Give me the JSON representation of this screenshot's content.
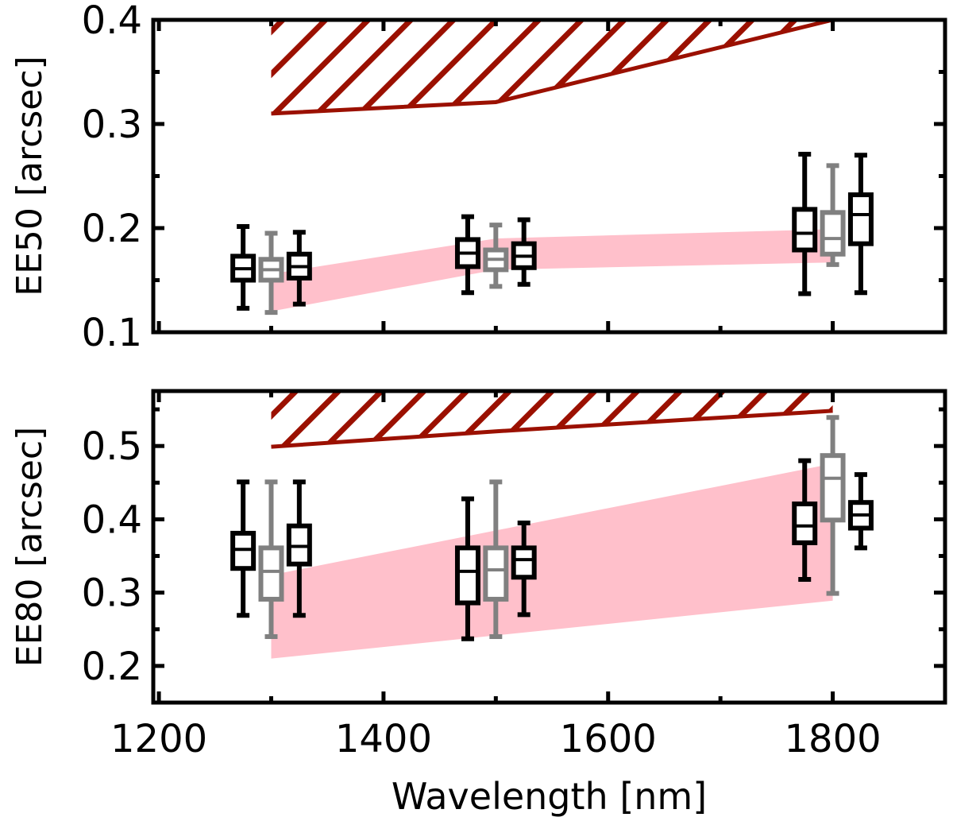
{
  "chart_data": [
    {
      "type": "box",
      "ylabel": "EE50 [arcsec]",
      "xlabel": "",
      "xlim": [
        1195,
        1900
      ],
      "ylim": [
        0.1,
        0.4
      ],
      "xticks": [
        1200,
        1400,
        1600,
        1800
      ],
      "yticks": [
        0.1,
        0.2,
        0.3,
        0.4
      ],
      "yticklabels": [
        "0.1",
        "0.2",
        "0.3",
        "0.4"
      ],
      "colors": {
        "black": "#000000",
        "gray": "#808080",
        "hatch": "#9b1000",
        "band": "#ffc0cb"
      },
      "hatched_region": {
        "x": [
          1300,
          1500,
          1800
        ],
        "lower": [
          0.31,
          0.321,
          0.4
        ]
      },
      "shaded_band": {
        "x": [
          1300,
          1500,
          1800
        ],
        "lower": [
          0.12,
          0.16,
          0.167
        ],
        "upper": [
          0.156,
          0.19,
          0.199
        ]
      },
      "boxes": [
        {
          "x": 1275,
          "color": "black",
          "min": 0.123,
          "q1": 0.15,
          "median": 0.161,
          "q3": 0.173,
          "max": 0.2015
        },
        {
          "x": 1300,
          "color": "gray",
          "min": 0.119,
          "q1": 0.15,
          "median": 0.16,
          "q3": 0.17,
          "max": 0.195
        },
        {
          "x": 1325,
          "color": "black",
          "min": 0.127,
          "q1": 0.152,
          "median": 0.163,
          "q3": 0.175,
          "max": 0.196
        },
        {
          "x": 1475,
          "color": "black",
          "min": 0.138,
          "q1": 0.163,
          "median": 0.176,
          "q3": 0.189,
          "max": 0.211
        },
        {
          "x": 1500,
          "color": "gray",
          "min": 0.144,
          "q1": 0.16,
          "median": 0.17,
          "q3": 0.179,
          "max": 0.203
        },
        {
          "x": 1525,
          "color": "black",
          "min": 0.146,
          "q1": 0.162,
          "median": 0.173,
          "q3": 0.185,
          "max": 0.208
        },
        {
          "x": 1775,
          "color": "black",
          "min": 0.137,
          "q1": 0.179,
          "median": 0.195,
          "q3": 0.218,
          "max": 0.271
        },
        {
          "x": 1800,
          "color": "gray",
          "min": 0.165,
          "q1": 0.175,
          "median": 0.19,
          "q3": 0.215,
          "max": 0.26
        },
        {
          "x": 1825,
          "color": "black",
          "min": 0.138,
          "q1": 0.185,
          "median": 0.213,
          "q3": 0.232,
          "max": 0.27
        }
      ]
    },
    {
      "type": "box",
      "ylabel": "EE80 [arcsec]",
      "xlabel": "Wavelength [nm]",
      "xlim": [
        1195,
        1900
      ],
      "ylim": [
        0.15,
        0.575
      ],
      "xticks": [
        1200,
        1400,
        1600,
        1800
      ],
      "xticklabels": [
        "1200",
        "1400",
        "1600",
        "1800"
      ],
      "yticks": [
        0.2,
        0.3,
        0.4,
        0.5
      ],
      "yticklabels": [
        "0.2",
        "0.3",
        "0.4",
        "0.5"
      ],
      "colors": {
        "black": "#000000",
        "gray": "#808080",
        "hatch": "#9b1000",
        "band": "#ffc0cb"
      },
      "hatched_region": {
        "x": [
          1300,
          1500,
          1800
        ],
        "lower": [
          0.499,
          0.52,
          0.548
        ]
      },
      "shaded_band": {
        "x": [
          1300,
          1800
        ],
        "lower": [
          0.21,
          0.289
        ],
        "upper": [
          0.324,
          0.476
        ]
      },
      "boxes": [
        {
          "x": 1275,
          "color": "black",
          "min": 0.269,
          "q1": 0.333,
          "median": 0.359,
          "q3": 0.381,
          "max": 0.451
        },
        {
          "x": 1300,
          "color": "gray",
          "min": 0.24,
          "q1": 0.291,
          "median": 0.329,
          "q3": 0.361,
          "max": 0.451
        },
        {
          "x": 1325,
          "color": "black",
          "min": 0.269,
          "q1": 0.339,
          "median": 0.363,
          "q3": 0.391,
          "max": 0.451
        },
        {
          "x": 1475,
          "color": "black",
          "min": 0.237,
          "q1": 0.286,
          "median": 0.329,
          "q3": 0.361,
          "max": 0.428
        },
        {
          "x": 1500,
          "color": "gray",
          "min": 0.24,
          "q1": 0.291,
          "median": 0.331,
          "q3": 0.361,
          "max": 0.451
        },
        {
          "x": 1525,
          "color": "black",
          "min": 0.27,
          "q1": 0.321,
          "median": 0.345,
          "q3": 0.361,
          "max": 0.395
        },
        {
          "x": 1775,
          "color": "black",
          "min": 0.318,
          "q1": 0.368,
          "median": 0.391,
          "q3": 0.421,
          "max": 0.48
        },
        {
          "x": 1800,
          "color": "gray",
          "min": 0.299,
          "q1": 0.399,
          "median": 0.456,
          "q3": 0.487,
          "max": 0.539
        },
        {
          "x": 1825,
          "color": "black",
          "min": 0.361,
          "q1": 0.388,
          "median": 0.406,
          "q3": 0.423,
          "max": 0.461
        }
      ]
    }
  ]
}
